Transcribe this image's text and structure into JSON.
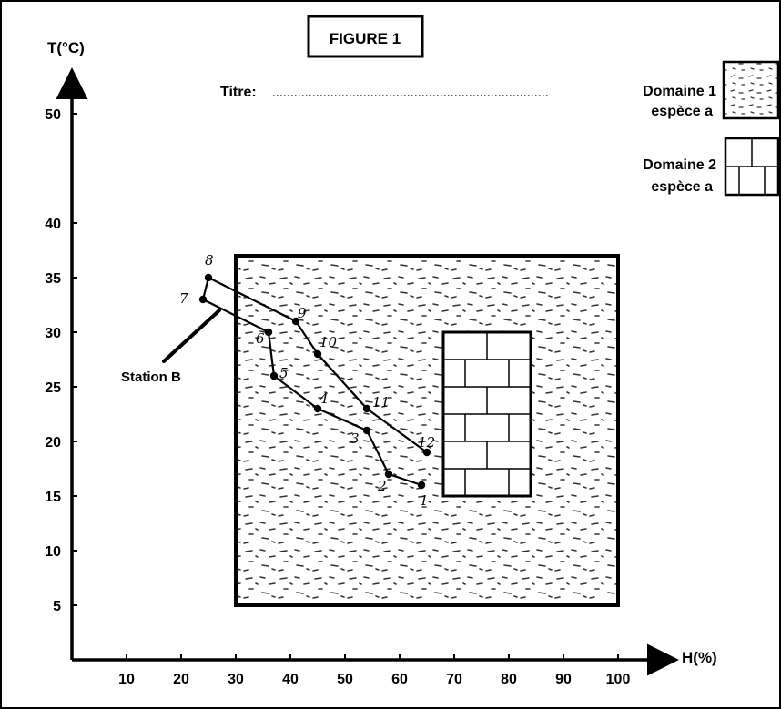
{
  "figure_label": "FIGURE 1",
  "title_label": "Titre:",
  "legend": [
    {
      "label_line1": "Domaine 1",
      "label_line2": "espèce a",
      "pattern": "dotted"
    },
    {
      "label_line1": "Domaine 2",
      "label_line2": "espèce a",
      "pattern": "brick"
    }
  ],
  "station_label": "Station B",
  "chart_data": {
    "type": "line",
    "xlabel": "H(%)",
    "ylabel": "T(°C)",
    "xlim": [
      0,
      100
    ],
    "ylim": [
      0,
      55
    ],
    "x_ticks": [
      10,
      20,
      30,
      40,
      50,
      60,
      70,
      80,
      90,
      100
    ],
    "y_ticks": [
      5,
      10,
      15,
      20,
      25,
      30,
      35,
      40,
      50
    ],
    "grid": false,
    "points": [
      {
        "label": "1",
        "x": 64,
        "y": 16
      },
      {
        "label": "2",
        "x": 58,
        "y": 17
      },
      {
        "label": "3",
        "x": 54,
        "y": 21
      },
      {
        "label": "4",
        "x": 45,
        "y": 23
      },
      {
        "label": "5",
        "x": 37,
        "y": 26
      },
      {
        "label": "6",
        "x": 36,
        "y": 30
      },
      {
        "label": "7",
        "x": 24,
        "y": 33
      },
      {
        "label": "8",
        "x": 25,
        "y": 35
      },
      {
        "label": "9",
        "x": 41,
        "y": 31
      },
      {
        "label": "10",
        "x": 45,
        "y": 28
      },
      {
        "label": "11",
        "x": 54,
        "y": 23
      },
      {
        "label": "12",
        "x": 65,
        "y": 19
      }
    ],
    "regions": [
      {
        "name": "Domaine 1 espèce a",
        "pattern": "dotted",
        "x": [
          30,
          100
        ],
        "y": [
          5,
          37
        ]
      },
      {
        "name": "Domaine 2 espèce a",
        "pattern": "brick",
        "x": [
          68,
          84
        ],
        "y": [
          15,
          30
        ]
      }
    ]
  }
}
